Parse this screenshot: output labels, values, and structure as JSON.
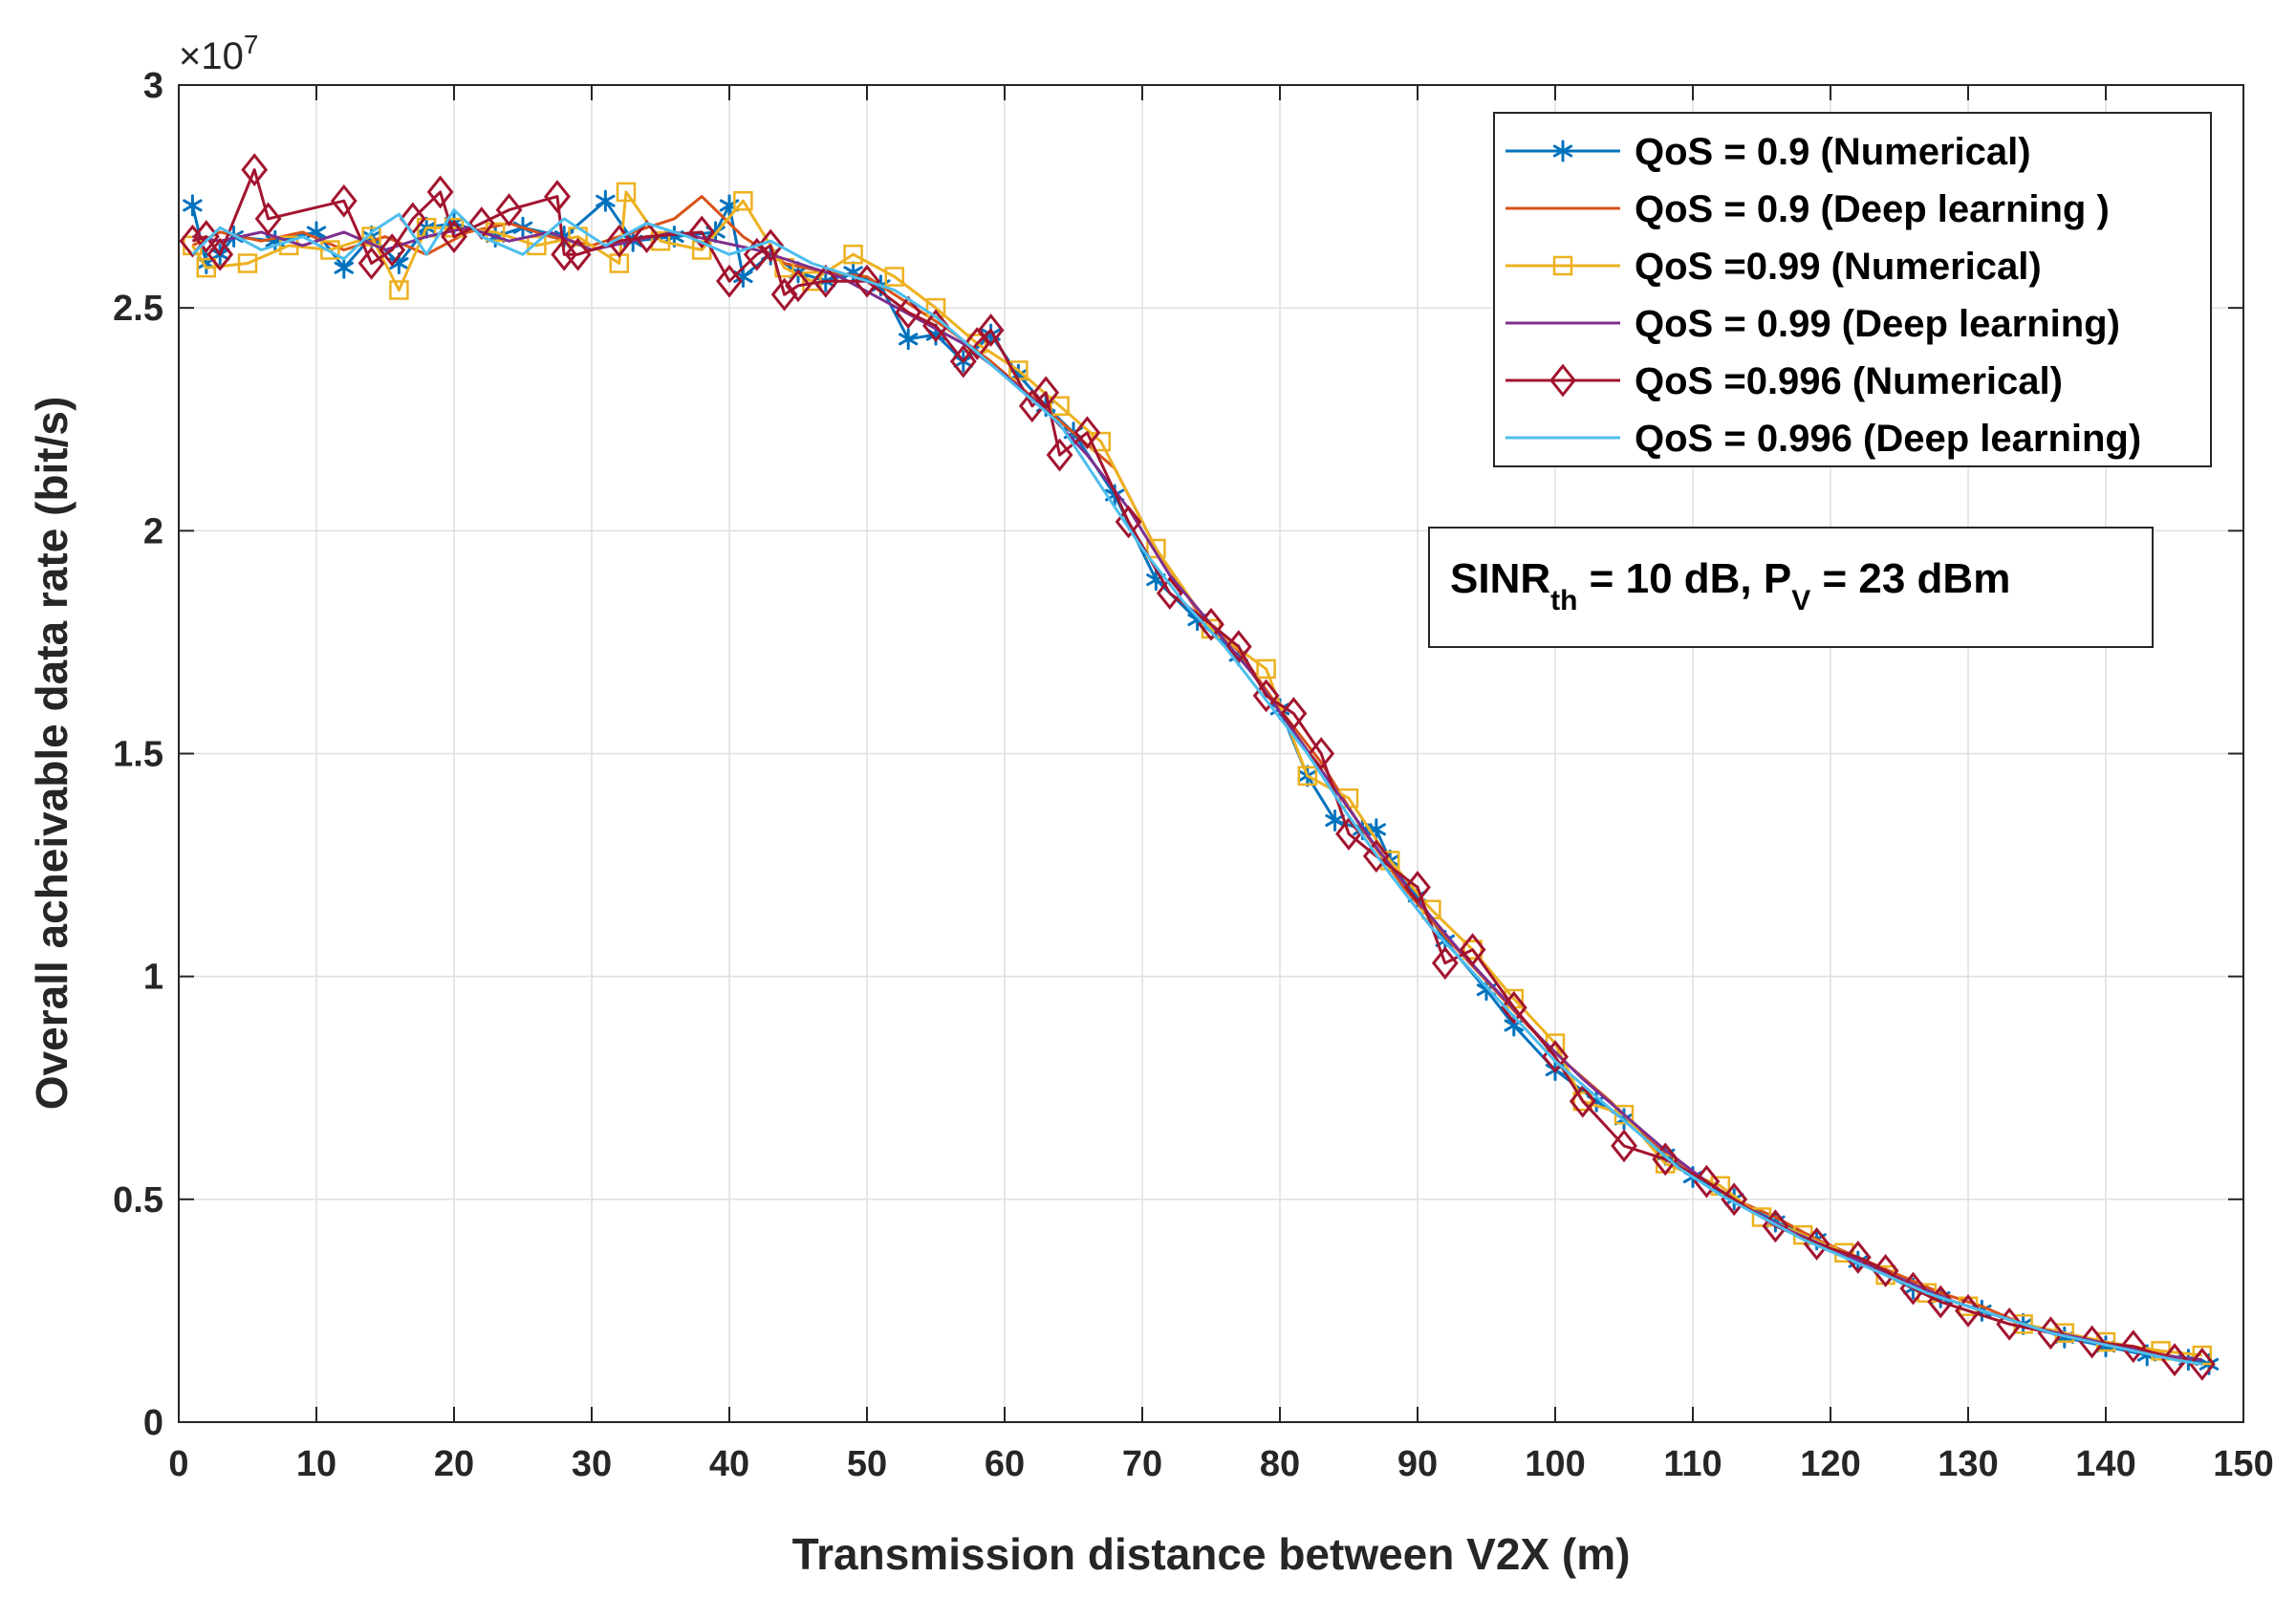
{
  "chart_data": {
    "type": "line",
    "title": "",
    "xlabel": "Transmission distance between V2X (m)",
    "ylabel": "Overall acheivable data rate (bit/s)",
    "xlim": [
      0,
      150
    ],
    "ylim": [
      0,
      3
    ],
    "x_ticks": [
      0,
      10,
      20,
      30,
      40,
      50,
      60,
      70,
      80,
      90,
      100,
      110,
      120,
      130,
      140,
      150
    ],
    "x_tick_labels": [
      "0",
      "10",
      "20",
      "30",
      "40",
      "50",
      "60",
      "70",
      "80",
      "90",
      "100",
      "110",
      "120",
      "130",
      "140",
      "150"
    ],
    "y_ticks": [
      0,
      0.5,
      1,
      1.5,
      2,
      2.5,
      3
    ],
    "y_tick_labels": [
      "0",
      "0.5",
      "1",
      "1.5",
      "2",
      "2.5",
      "3"
    ],
    "y_exponent": {
      "base": "×10",
      "power": "7"
    },
    "grid": true,
    "legend_position": "top-right",
    "annotation": {
      "main1": "SINR",
      "sub1": "th",
      "mid": " = 10 dB, P",
      "sub2": "V",
      "tail": " = 23 dBm"
    },
    "series": [
      {
        "name": "QoS = 0.9 (Numerical)",
        "color": "#0072BD",
        "marker": "asterisk",
        "x": [
          1,
          2,
          3,
          4,
          7,
          10,
          12,
          14,
          16,
          18,
          20,
          23,
          25,
          28,
          31,
          33,
          36,
          39,
          40,
          41,
          43,
          45,
          47,
          49,
          51,
          53,
          55,
          57,
          59,
          61,
          63,
          65,
          68,
          71,
          74,
          77,
          80,
          82,
          84,
          86,
          87,
          88,
          90,
          92,
          95,
          97,
          100,
          103,
          105,
          108,
          110,
          113,
          116,
          119,
          122,
          126,
          128,
          131,
          134,
          137,
          140,
          143,
          146,
          147.5
        ],
        "y": [
          2.73,
          2.6,
          2.62,
          2.66,
          2.65,
          2.67,
          2.59,
          2.66,
          2.6,
          2.68,
          2.69,
          2.66,
          2.68,
          2.66,
          2.74,
          2.65,
          2.66,
          2.67,
          2.73,
          2.57,
          2.62,
          2.58,
          2.56,
          2.58,
          2.55,
          2.43,
          2.44,
          2.38,
          2.44,
          2.35,
          2.28,
          2.22,
          2.08,
          1.89,
          1.8,
          1.72,
          1.6,
          1.45,
          1.35,
          1.33,
          1.33,
          1.26,
          1.18,
          1.08,
          0.97,
          0.89,
          0.79,
          0.72,
          0.68,
          0.6,
          0.55,
          0.5,
          0.45,
          0.41,
          0.36,
          0.3,
          0.28,
          0.25,
          0.22,
          0.19,
          0.17,
          0.15,
          0.14,
          0.13
        ]
      },
      {
        "name": "QoS = 0.9 (Deep learning )",
        "color": "#D95319",
        "marker": "none",
        "x": [
          1,
          3,
          6,
          9,
          12,
          15,
          18,
          21,
          24,
          27,
          30,
          33,
          36,
          38,
          41,
          44,
          47,
          50,
          53,
          56,
          59,
          62,
          65,
          68,
          71,
          74,
          77,
          80,
          83,
          86,
          89,
          92,
          95,
          98,
          101,
          104,
          107,
          110,
          113,
          116,
          119,
          122,
          125,
          128,
          131,
          134,
          137,
          140,
          143,
          146
        ],
        "y": [
          2.64,
          2.67,
          2.65,
          2.67,
          2.63,
          2.66,
          2.62,
          2.67,
          2.69,
          2.66,
          2.64,
          2.67,
          2.7,
          2.75,
          2.66,
          2.6,
          2.58,
          2.57,
          2.51,
          2.45,
          2.38,
          2.3,
          2.22,
          2.14,
          1.96,
          1.82,
          1.73,
          1.6,
          1.48,
          1.33,
          1.2,
          1.09,
          0.99,
          0.89,
          0.8,
          0.72,
          0.63,
          0.56,
          0.5,
          0.46,
          0.41,
          0.37,
          0.33,
          0.29,
          0.26,
          0.22,
          0.2,
          0.18,
          0.16,
          0.14
        ]
      },
      {
        "name": "QoS =0.99 (Numerical)",
        "color": "#EDB120",
        "marker": "square",
        "x": [
          1,
          2,
          5,
          8,
          11,
          14,
          16,
          18,
          20,
          23,
          26,
          29,
          32,
          32.5,
          35,
          38,
          41,
          44,
          46,
          49,
          52,
          55,
          58,
          61,
          64,
          67,
          71,
          75,
          79,
          82,
          85,
          88,
          91,
          94,
          97,
          100,
          102,
          105,
          108,
          112,
          115,
          118,
          121,
          124,
          127,
          130,
          134,
          137,
          140,
          144,
          147
        ],
        "y": [
          2.64,
          2.59,
          2.6,
          2.64,
          2.63,
          2.66,
          2.54,
          2.68,
          2.68,
          2.67,
          2.64,
          2.66,
          2.6,
          2.76,
          2.65,
          2.63,
          2.74,
          2.59,
          2.56,
          2.62,
          2.57,
          2.5,
          2.42,
          2.36,
          2.28,
          2.2,
          1.96,
          1.78,
          1.69,
          1.45,
          1.4,
          1.26,
          1.15,
          1.06,
          0.95,
          0.85,
          0.72,
          0.69,
          0.58,
          0.53,
          0.46,
          0.42,
          0.38,
          0.33,
          0.29,
          0.26,
          0.22,
          0.2,
          0.18,
          0.16,
          0.15
        ]
      },
      {
        "name": "QoS = 0.99 (Deep learning)",
        "color": "#7E2F8E",
        "marker": "none",
        "x": [
          1,
          3,
          6,
          9,
          12,
          15,
          18,
          21,
          24,
          27,
          30,
          33,
          36,
          39,
          42,
          45,
          48,
          51,
          54,
          57,
          60,
          63,
          66,
          69,
          72,
          75,
          78,
          81,
          84,
          87,
          90,
          93,
          96,
          99,
          102,
          105,
          108,
          111,
          114,
          117,
          120,
          123,
          126,
          129,
          132,
          135,
          138,
          141,
          144,
          147
        ],
        "y": [
          2.66,
          2.65,
          2.67,
          2.64,
          2.67,
          2.63,
          2.66,
          2.68,
          2.65,
          2.67,
          2.63,
          2.65,
          2.67,
          2.65,
          2.63,
          2.6,
          2.57,
          2.52,
          2.47,
          2.42,
          2.35,
          2.27,
          2.17,
          2.05,
          1.9,
          1.79,
          1.68,
          1.55,
          1.42,
          1.29,
          1.17,
          1.06,
          0.96,
          0.86,
          0.77,
          0.69,
          0.61,
          0.54,
          0.48,
          0.43,
          0.39,
          0.35,
          0.31,
          0.27,
          0.24,
          0.21,
          0.19,
          0.17,
          0.15,
          0.14
        ]
      },
      {
        "name": "QoS =0.996 (Numerical)",
        "color": "#A2142F",
        "marker": "diamond",
        "x": [
          1,
          2,
          3,
          5.5,
          6.5,
          12,
          14,
          15.5,
          17,
          19,
          20,
          22,
          24,
          27.5,
          28,
          29,
          32,
          34,
          38,
          40,
          42,
          43,
          44,
          45,
          47,
          50,
          53,
          55,
          57,
          58,
          59,
          62,
          63,
          64,
          66,
          69,
          72,
          75,
          77,
          79,
          81,
          83,
          85,
          87,
          90,
          92,
          94,
          97,
          100,
          102,
          105,
          108,
          111,
          113,
          116,
          119,
          122,
          124,
          126,
          128,
          130,
          133,
          136,
          139,
          142,
          145,
          147
        ],
        "y": [
          2.65,
          2.66,
          2.62,
          2.81,
          2.7,
          2.74,
          2.6,
          2.63,
          2.7,
          2.76,
          2.66,
          2.69,
          2.72,
          2.75,
          2.62,
          2.62,
          2.65,
          2.66,
          2.67,
          2.56,
          2.62,
          2.64,
          2.53,
          2.55,
          2.56,
          2.56,
          2.49,
          2.46,
          2.38,
          2.42,
          2.45,
          2.28,
          2.31,
          2.17,
          2.22,
          2.02,
          1.86,
          1.79,
          1.74,
          1.63,
          1.59,
          1.5,
          1.32,
          1.27,
          1.2,
          1.03,
          1.06,
          0.93,
          0.82,
          0.72,
          0.62,
          0.59,
          0.54,
          0.5,
          0.44,
          0.4,
          0.37,
          0.34,
          0.3,
          0.27,
          0.25,
          0.22,
          0.2,
          0.18,
          0.17,
          0.14,
          0.13
        ]
      },
      {
        "name": "QoS = 0.996 (Deep learning)",
        "color": "#4DBEEE",
        "marker": "none",
        "x": [
          1,
          3,
          6,
          9,
          12,
          14,
          16,
          18,
          20,
          22,
          25,
          28,
          31,
          34,
          37,
          40,
          43,
          46,
          49,
          52,
          55,
          58,
          61,
          64,
          67,
          70,
          73,
          76,
          79,
          82,
          85,
          88,
          91,
          94,
          97,
          100,
          103,
          106,
          109,
          112,
          115,
          118,
          121,
          124,
          127,
          130,
          133,
          136,
          139,
          142,
          145,
          147
        ],
        "y": [
          2.62,
          2.68,
          2.63,
          2.66,
          2.61,
          2.67,
          2.71,
          2.62,
          2.72,
          2.66,
          2.62,
          2.7,
          2.64,
          2.69,
          2.66,
          2.62,
          2.65,
          2.6,
          2.57,
          2.54,
          2.48,
          2.4,
          2.32,
          2.24,
          2.1,
          1.96,
          1.84,
          1.74,
          1.62,
          1.5,
          1.36,
          1.23,
          1.11,
          1.01,
          0.91,
          0.81,
          0.73,
          0.65,
          0.57,
          0.51,
          0.46,
          0.41,
          0.37,
          0.33,
          0.29,
          0.26,
          0.23,
          0.2,
          0.18,
          0.16,
          0.14,
          0.13
        ]
      }
    ]
  }
}
